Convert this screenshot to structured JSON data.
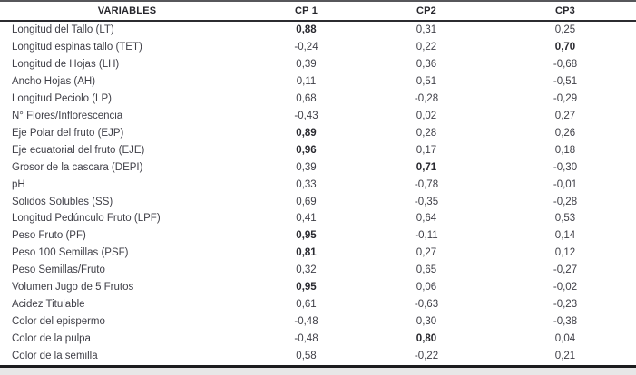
{
  "table": {
    "columns": [
      "VARIABLES",
      "CP 1",
      "CP2",
      "CP3"
    ],
    "rows": [
      {
        "variable": "Longitud del Tallo (LT)",
        "values": [
          "0,88",
          "0,31",
          "0,25"
        ],
        "bold": [
          true,
          false,
          false
        ]
      },
      {
        "variable": "Longitud espinas tallo (TET)",
        "values": [
          "-0,24",
          "0,22",
          "0,70"
        ],
        "bold": [
          false,
          false,
          true
        ]
      },
      {
        "variable": "Longitud de Hojas (LH)",
        "values": [
          "0,39",
          "0,36",
          "-0,68"
        ],
        "bold": [
          false,
          false,
          false
        ]
      },
      {
        "variable": "Ancho Hojas (AH)",
        "values": [
          "0,11",
          "0,51",
          "-0,51"
        ],
        "bold": [
          false,
          false,
          false
        ]
      },
      {
        "variable": "Longitud Peciolo (LP)",
        "values": [
          "0,68",
          "-0,28",
          "-0,29"
        ],
        "bold": [
          false,
          false,
          false
        ]
      },
      {
        "variable": "N° Flores/Inflorescencia",
        "values": [
          "-0,43",
          "0,02",
          "0,27"
        ],
        "bold": [
          false,
          false,
          false
        ]
      },
      {
        "variable": "Eje Polar del fruto (EJP)",
        "values": [
          "0,89",
          "0,28",
          "0,26"
        ],
        "bold": [
          true,
          false,
          false
        ]
      },
      {
        "variable": "Eje ecuatorial del fruto (EJE)",
        "values": [
          "0,96",
          "0,17",
          "0,18"
        ],
        "bold": [
          true,
          false,
          false
        ]
      },
      {
        "variable": "Grosor de la cascara (DEPI)",
        "values": [
          "0,39",
          "0,71",
          "-0,30"
        ],
        "bold": [
          false,
          true,
          false
        ]
      },
      {
        "variable": "pH",
        "values": [
          "0,33",
          "-0,78",
          "-0,01"
        ],
        "bold": [
          false,
          false,
          false
        ]
      },
      {
        "variable": "Solidos Solubles (SS)",
        "values": [
          "0,69",
          "-0,35",
          "-0,28"
        ],
        "bold": [
          false,
          false,
          false
        ]
      },
      {
        "variable": "Longitud Pedúnculo Fruto (LPF)",
        "values": [
          "0,41",
          "0,64",
          "0,53"
        ],
        "bold": [
          false,
          false,
          false
        ]
      },
      {
        "variable": "Peso Fruto (PF)",
        "values": [
          "0,95",
          "-0,11",
          "0,14"
        ],
        "bold": [
          true,
          false,
          false
        ]
      },
      {
        "variable": "Peso 100 Semillas (PSF)",
        "values": [
          "0,81",
          "0,27",
          "0,12"
        ],
        "bold": [
          true,
          false,
          false
        ]
      },
      {
        "variable": "Peso Semillas/Fruto",
        "values": [
          "0,32",
          "0,65",
          "-0,27"
        ],
        "bold": [
          false,
          false,
          false
        ]
      },
      {
        "variable": "Volumen Jugo de 5 Frutos",
        "values": [
          "0,95",
          "0,06",
          "-0,02"
        ],
        "bold": [
          true,
          false,
          false
        ]
      },
      {
        "variable": "Acidez Titulable",
        "values": [
          "0,61",
          "-0,63",
          "-0,23"
        ],
        "bold": [
          false,
          false,
          false
        ]
      },
      {
        "variable": "Color del epispermo",
        "values": [
          "-0,48",
          "0,30",
          "-0,38"
        ],
        "bold": [
          false,
          false,
          false
        ]
      },
      {
        "variable": "Color de la pulpa",
        "values": [
          "-0,48",
          "0,80",
          "0,04"
        ],
        "bold": [
          false,
          true,
          false
        ]
      },
      {
        "variable": "Color de la semilla",
        "values": [
          "0,58",
          "-0,22",
          "0,21"
        ],
        "bold": [
          false,
          false,
          false
        ]
      }
    ]
  },
  "colors": {
    "text": "#3f3f47",
    "header_text": "#26262c",
    "top_rule": "#57575b",
    "header_rule": "#2c2c30",
    "bottom_rule": "#1c1c1e",
    "page_below": "#e7e7e7"
  }
}
